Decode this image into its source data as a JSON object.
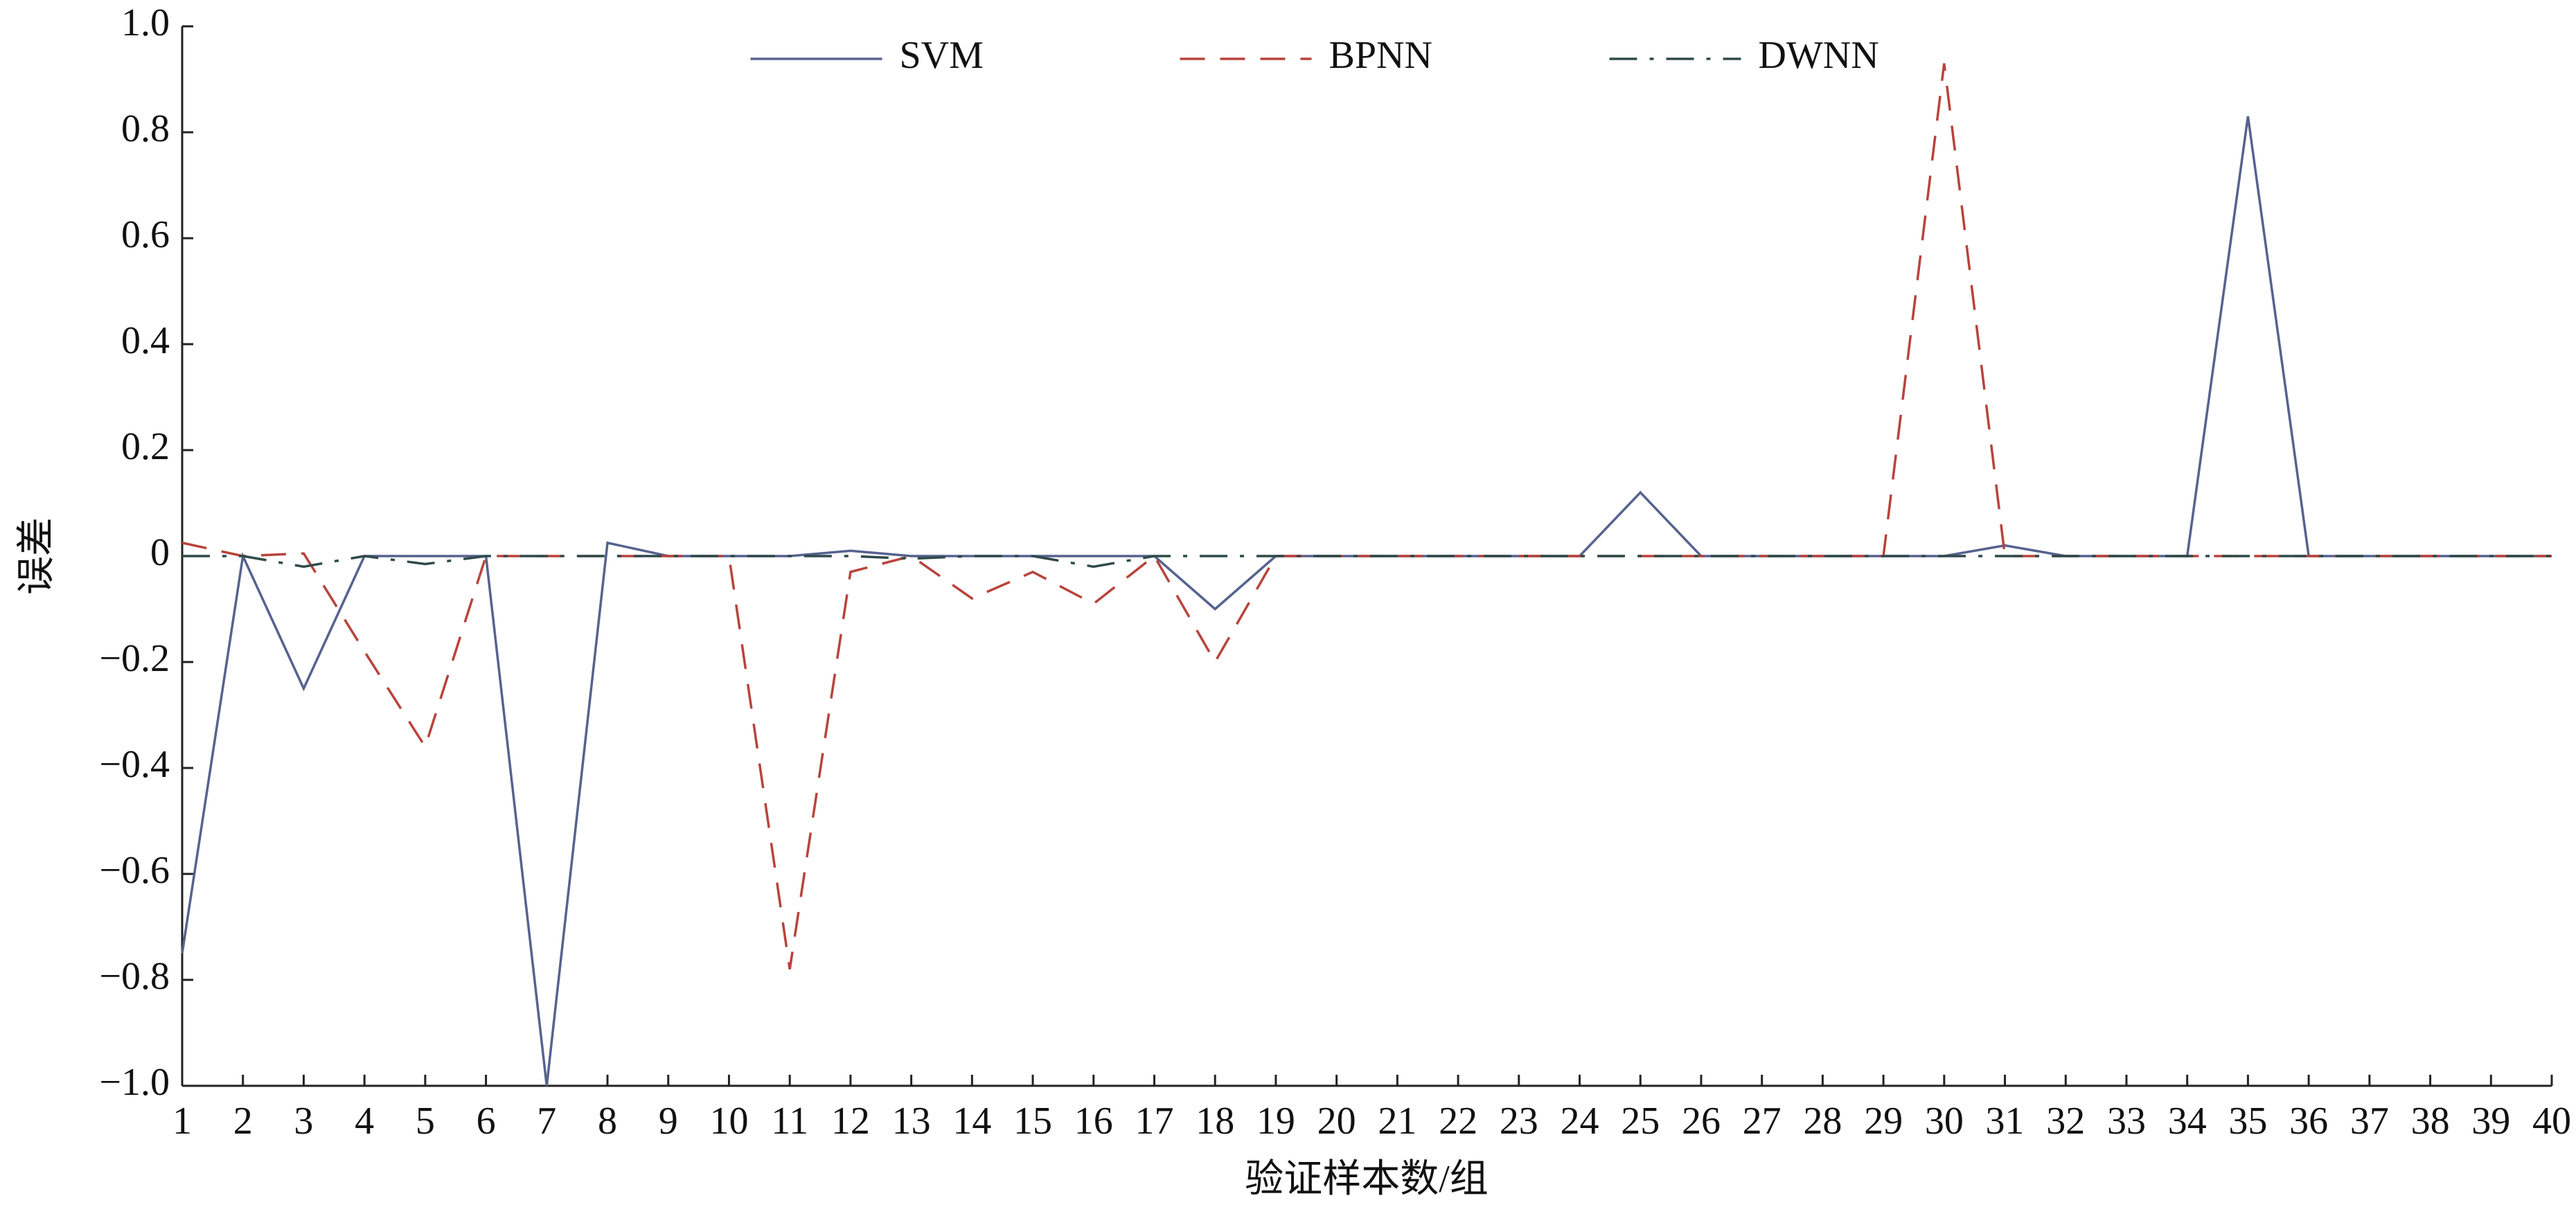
{
  "chart_data": {
    "type": "line",
    "x_label": "验证样本数/组",
    "y_label": "误差",
    "x": [
      1,
      2,
      3,
      4,
      5,
      6,
      7,
      8,
      9,
      10,
      11,
      12,
      13,
      14,
      15,
      16,
      17,
      18,
      19,
      20,
      21,
      22,
      23,
      24,
      25,
      26,
      27,
      28,
      29,
      30,
      31,
      32,
      33,
      34,
      35,
      36,
      37,
      38,
      39,
      40
    ],
    "series": [
      {
        "name": "SVM",
        "color": "#56628f",
        "linestyle": "solid",
        "values": [
          -0.75,
          0,
          -0.25,
          0,
          0,
          0,
          -1.0,
          0.025,
          0,
          0,
          0,
          0.01,
          0,
          0,
          0,
          0,
          0,
          -0.1,
          0,
          0,
          0,
          0,
          0,
          0,
          0.12,
          0,
          0,
          0,
          0,
          0,
          0.02,
          0,
          0,
          0,
          0.83,
          0,
          0,
          0,
          0,
          0
        ]
      },
      {
        "name": "BPNN",
        "color": "#b8433c",
        "linestyle": "dashed",
        "values": [
          0.025,
          0,
          0.005,
          -0.18,
          -0.36,
          0,
          0,
          0,
          0,
          0,
          -0.78,
          -0.03,
          0,
          -0.08,
          -0.03,
          -0.09,
          0,
          -0.2,
          0,
          0,
          0,
          0,
          0,
          0,
          0,
          0,
          0,
          0,
          0,
          0.93,
          0,
          0,
          0,
          0,
          0,
          0,
          0,
          0,
          0,
          0
        ]
      },
      {
        "name": "DWNN",
        "color": "#2f4a4a",
        "linestyle": "dashdot",
        "values": [
          0,
          0,
          -0.02,
          0,
          -0.015,
          0,
          0,
          0,
          0,
          0,
          0,
          0,
          -0.005,
          0,
          0,
          -0.02,
          0,
          0,
          0,
          0,
          0,
          0,
          0,
          0,
          0,
          0,
          0,
          0,
          0,
          0,
          0,
          0,
          0,
          0,
          0,
          0,
          0,
          0,
          0,
          0
        ]
      }
    ],
    "xlim": [
      1,
      40
    ],
    "xticks": [
      1,
      2,
      3,
      4,
      5,
      6,
      7,
      8,
      9,
      10,
      11,
      12,
      13,
      14,
      15,
      16,
      17,
      18,
      19,
      20,
      21,
      22,
      23,
      24,
      25,
      26,
      27,
      28,
      29,
      30,
      31,
      32,
      33,
      34,
      35,
      36,
      37,
      38,
      39,
      40
    ],
    "ylim": [
      -1,
      1
    ],
    "yticks": [
      {
        "value": -1,
        "label": "−1.0"
      },
      {
        "value": -0.8,
        "label": "−0.8"
      },
      {
        "value": -0.6,
        "label": "−0.6"
      },
      {
        "value": -0.4,
        "label": "−0.4"
      },
      {
        "value": -0.2,
        "label": "−0.2"
      },
      0,
      0.2,
      0.4,
      0.6,
      0.8,
      {
        "value": 1,
        "label": "1.0"
      }
    ],
    "grid": false,
    "legend": "upper center"
  }
}
